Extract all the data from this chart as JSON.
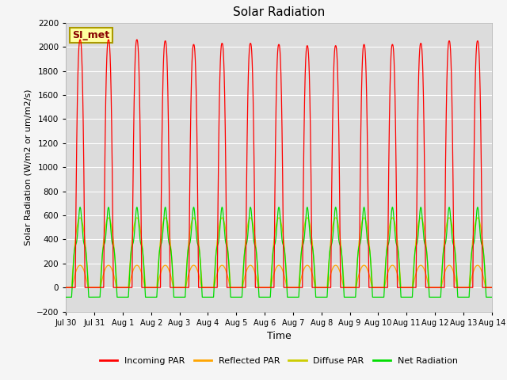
{
  "title": "Solar Radiation",
  "xlabel": "Time",
  "ylabel": "Solar Radiation (W/m2 or um/m2/s)",
  "ylim": [
    -200,
    2200
  ],
  "yticks": [
    -200,
    0,
    200,
    400,
    600,
    800,
    1000,
    1200,
    1400,
    1600,
    1800,
    2000,
    2200
  ],
  "x_tick_labels": [
    "Jul 30",
    "Jul 31",
    "Aug 1",
    "Aug 2",
    "Aug 3",
    "Aug 4",
    "Aug 5",
    "Aug 6",
    "Aug 7",
    "Aug 8",
    "Aug 9",
    "Aug 10",
    "Aug 11",
    "Aug 12",
    "Aug 13",
    "Aug 14"
  ],
  "num_days": 15,
  "plot_bg_color": "#dcdcdc",
  "fig_bg_color": "#f5f5f5",
  "incoming_color": "#ff0000",
  "reflected_color": "#ffa500",
  "diffuse_color": "#cccc00",
  "net_color": "#00dd00",
  "legend_label": "SI_met",
  "legend_box_color": "#ffffa0",
  "legend_box_edge": "#aa9900",
  "legend_text_color": "#880000",
  "incoming_peaks": [
    2060,
    2060,
    2060,
    2050,
    2020,
    2030,
    2030,
    2020,
    2010,
    2010,
    2020,
    2020,
    2030,
    2050,
    2050
  ],
  "reflected_peak": 185,
  "diffuse_peak": 580,
  "net_night": -80,
  "net_peak": 570,
  "points_per_day": 500
}
